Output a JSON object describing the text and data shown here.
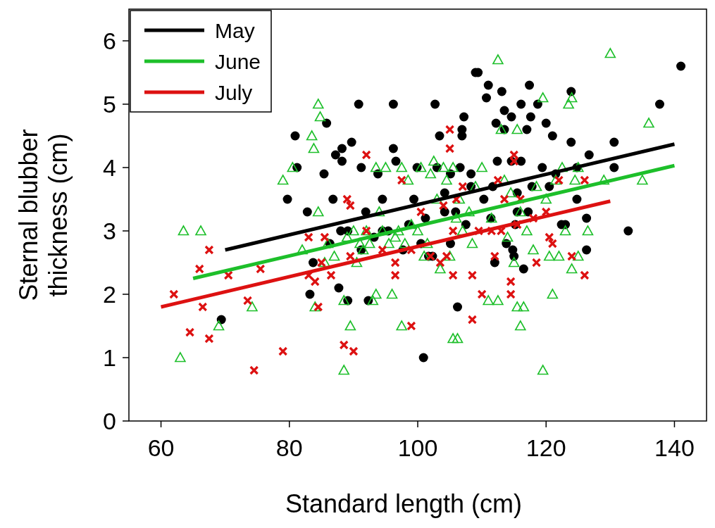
{
  "chart_data": {
    "type": "scatter",
    "xlabel": "Standard length (cm)",
    "ylabel": "Sternal blubber thickness (cm)",
    "xlim": [
      55,
      145
    ],
    "xticks": [
      60,
      80,
      100,
      120,
      140
    ],
    "ylim": [
      0,
      6.5
    ],
    "yticks": [
      0,
      1,
      2,
      3,
      4,
      5,
      6
    ],
    "grid": false,
    "legend": "top left",
    "series": [
      {
        "marker": "circle",
        "color": "#000000",
        "x": [
          69.4,
          79.7,
          80.9,
          81.2,
          82.8,
          83.7,
          83.2,
          85.4,
          85.8,
          86.3,
          86.8,
          87.2,
          87.7,
          88.0,
          88.2,
          88.2,
          89.1,
          89.1,
          89.7,
          90.8,
          91.2,
          91.2,
          91.9,
          92.3,
          93.2,
          93.8,
          94.5,
          94.5,
          95.4,
          96.2,
          96.2,
          96.6,
          97.7,
          98.6,
          99.4,
          99.9,
          100.5,
          100.9,
          101.2,
          101.7,
          102.3,
          102.7,
          103.0,
          103.4,
          104.2,
          104.2,
          105.1,
          105.1,
          105.9,
          106.2,
          106.6,
          106.9,
          106.9,
          107.2,
          107.5,
          108.3,
          108.3,
          109.0,
          109.4,
          110.3,
          110.7,
          111.0,
          111.4,
          111.7,
          112.0,
          112.2,
          112.4,
          113.1,
          113.5,
          113.5,
          113.8,
          114.6,
          114.6,
          114.8,
          115.0,
          115.2,
          115.5,
          115.5,
          116.1,
          116.1,
          116.5,
          117.0,
          117.2,
          117.4,
          117.6,
          117.8,
          118.7,
          119.4,
          120.0,
          120.5,
          121.0,
          121.5,
          122.4,
          123.0,
          123.9,
          123.9,
          124.8,
          124.8,
          126.3,
          126.3,
          126.7,
          130.6,
          130.6,
          132.8,
          137.7,
          141.0
        ],
        "values": [
          1.6,
          3.5,
          4.5,
          4.0,
          3.3,
          2.5,
          2.0,
          3.9,
          4.7,
          2.8,
          3.5,
          4.2,
          2.1,
          3.0,
          4.1,
          4.3,
          3.0,
          1.9,
          4.4,
          5.0,
          4.0,
          2.7,
          3.3,
          1.9,
          2.9,
          3.9,
          3.0,
          3.5,
          3.0,
          4.3,
          5.0,
          4.1,
          2.7,
          3.1,
          3.5,
          4.0,
          2.8,
          1.0,
          3.2,
          2.6,
          2.6,
          5.0,
          4.0,
          4.5,
          3.6,
          3.3,
          2.8,
          3.9,
          3.3,
          1.8,
          4.0,
          4.5,
          4.6,
          4.8,
          3.1,
          3.7,
          3.9,
          5.5,
          5.5,
          3.5,
          5.1,
          5.3,
          3.2,
          3.7,
          2.5,
          4.7,
          4.1,
          5.2,
          4.9,
          4.6,
          2.8,
          4.1,
          4.8,
          2.7,
          2.6,
          3.1,
          3.6,
          3.3,
          5.0,
          4.1,
          2.4,
          4.6,
          3.3,
          5.3,
          4.8,
          3.7,
          5.0,
          4.0,
          4.7,
          3.7,
          4.5,
          3.9,
          3.1,
          3.1,
          4.4,
          5.2,
          3.5,
          4.0,
          2.7,
          3.2,
          4.2,
          4.0,
          4.4,
          3.0,
          5.0,
          5.6
        ]
      },
      {
        "marker": "triangle",
        "color": "#1dbf2a",
        "x": [
          63,
          63.5,
          66.2,
          69,
          74.2,
          79,
          80.5,
          82,
          83.5,
          83.8,
          84,
          84.5,
          84.8,
          84.5,
          85.5,
          86,
          87,
          88.5,
          88.5,
          89,
          89.5,
          90,
          90.5,
          91,
          91.5,
          92,
          92.5,
          93,
          93.5,
          93.5,
          94,
          94.5,
          95,
          95.5,
          96,
          96.5,
          97,
          97.5,
          97.5,
          98,
          98.5,
          99,
          100,
          100.5,
          101,
          101.5,
          102,
          102.5,
          103,
          103.5,
          104,
          104.5,
          105,
          105.5,
          105.5,
          106,
          106.2,
          106.5,
          107,
          108,
          108.5,
          109,
          110,
          111,
          111.5,
          112.5,
          112.5,
          113,
          113.5,
          114,
          114.5,
          115,
          115.5,
          115.5,
          116,
          116,
          116.5,
          117,
          118,
          118.5,
          119.5,
          119.5,
          120,
          120.5,
          121,
          121.5,
          122,
          122.5,
          123,
          123.5,
          124,
          124,
          124.5,
          125,
          125,
          126.5,
          129,
          130,
          135,
          136
        ],
        "values": [
          1.0,
          3.0,
          3.0,
          1.5,
          1.8,
          3.8,
          4.0,
          2.7,
          4.5,
          4.3,
          1.8,
          5.0,
          4.8,
          3.3,
          2.5,
          2.8,
          2.6,
          0.8,
          1.9,
          2.9,
          1.5,
          3.0,
          2.5,
          2.8,
          2.7,
          3.0,
          2.8,
          1.9,
          2.0,
          4.0,
          3.3,
          3.0,
          4.0,
          2.8,
          2.0,
          2.9,
          3.0,
          1.5,
          4.0,
          2.8,
          3.8,
          3.1,
          3.0,
          4.0,
          2.6,
          2.8,
          3.9,
          4.1,
          3.5,
          2.4,
          4.0,
          3.8,
          2.6,
          1.3,
          4.0,
          3.2,
          1.3,
          3.5,
          3.0,
          3.3,
          2.8,
          3.7,
          4.0,
          1.9,
          3.2,
          5.7,
          1.9,
          4.6,
          3.8,
          2.9,
          3.6,
          2.5,
          1.8,
          4.6,
          3.3,
          1.5,
          1.8,
          3.0,
          2.7,
          3.7,
          0.8,
          5.1,
          3.5,
          2.6,
          2.0,
          3.8,
          2.6,
          4.0,
          3.0,
          5.0,
          5.1,
          2.4,
          3.8,
          4.0,
          2.6,
          3.0,
          3.8,
          5.8,
          3.8,
          4.7
        ]
      },
      {
        "marker": "cross",
        "color": "#dd1111",
        "x": [
          62,
          64.5,
          66,
          66.5,
          67.5,
          67.5,
          70.5,
          73.5,
          74.5,
          75.5,
          79,
          83,
          83,
          84,
          84.5,
          85,
          85.5,
          86.5,
          88.5,
          89,
          89.5,
          89.5,
          90,
          92,
          92,
          94.5,
          96.5,
          96.5,
          97.5,
          99,
          99,
          100.5,
          102,
          103.5,
          104,
          104.5,
          105,
          105,
          105.5,
          105.5,
          106,
          107,
          108.5,
          108.5,
          109.5,
          110,
          111.5,
          112,
          112.5,
          113,
          113.5,
          114.5,
          114.5,
          115,
          115,
          115.5,
          116,
          118,
          118.5,
          120,
          120.5,
          121,
          122,
          124,
          126,
          126
        ],
        "values": [
          2.0,
          1.4,
          2.4,
          1.8,
          2.7,
          1.3,
          2.3,
          1.9,
          0.8,
          2.4,
          1.1,
          2.3,
          2.9,
          2.2,
          1.8,
          2.5,
          2.9,
          2.3,
          1.2,
          3.5,
          3.4,
          2.6,
          1.1,
          4.2,
          3.0,
          2.7,
          2.5,
          2.3,
          3.8,
          1.5,
          2.7,
          3.3,
          2.6,
          2.5,
          3.4,
          2.6,
          4.6,
          4.3,
          3.0,
          2.3,
          3.5,
          3.7,
          2.3,
          1.6,
          3.0,
          2.0,
          3.0,
          2.6,
          3.8,
          3.0,
          3.5,
          2.0,
          2.2,
          4.1,
          4.2,
          3.1,
          3.5,
          3.2,
          2.5,
          3.3,
          2.9,
          2.8,
          3.8,
          2.6,
          2.3,
          3.8
        ]
      },
      {
        "type": "line",
        "name": "May",
        "marker": "none",
        "color": "#000000",
        "x": [
          70,
          140
        ],
        "values": [
          2.7,
          4.37
        ]
      },
      {
        "type": "line",
        "name": "June",
        "marker": "none",
        "color": "#1dbf2a",
        "x": [
          65,
          140
        ],
        "values": [
          2.25,
          4.03
        ]
      },
      {
        "type": "line",
        "name": "July",
        "marker": "none",
        "color": "#dd1111",
        "x": [
          60,
          130
        ],
        "values": [
          1.8,
          3.47
        ]
      }
    ]
  }
}
